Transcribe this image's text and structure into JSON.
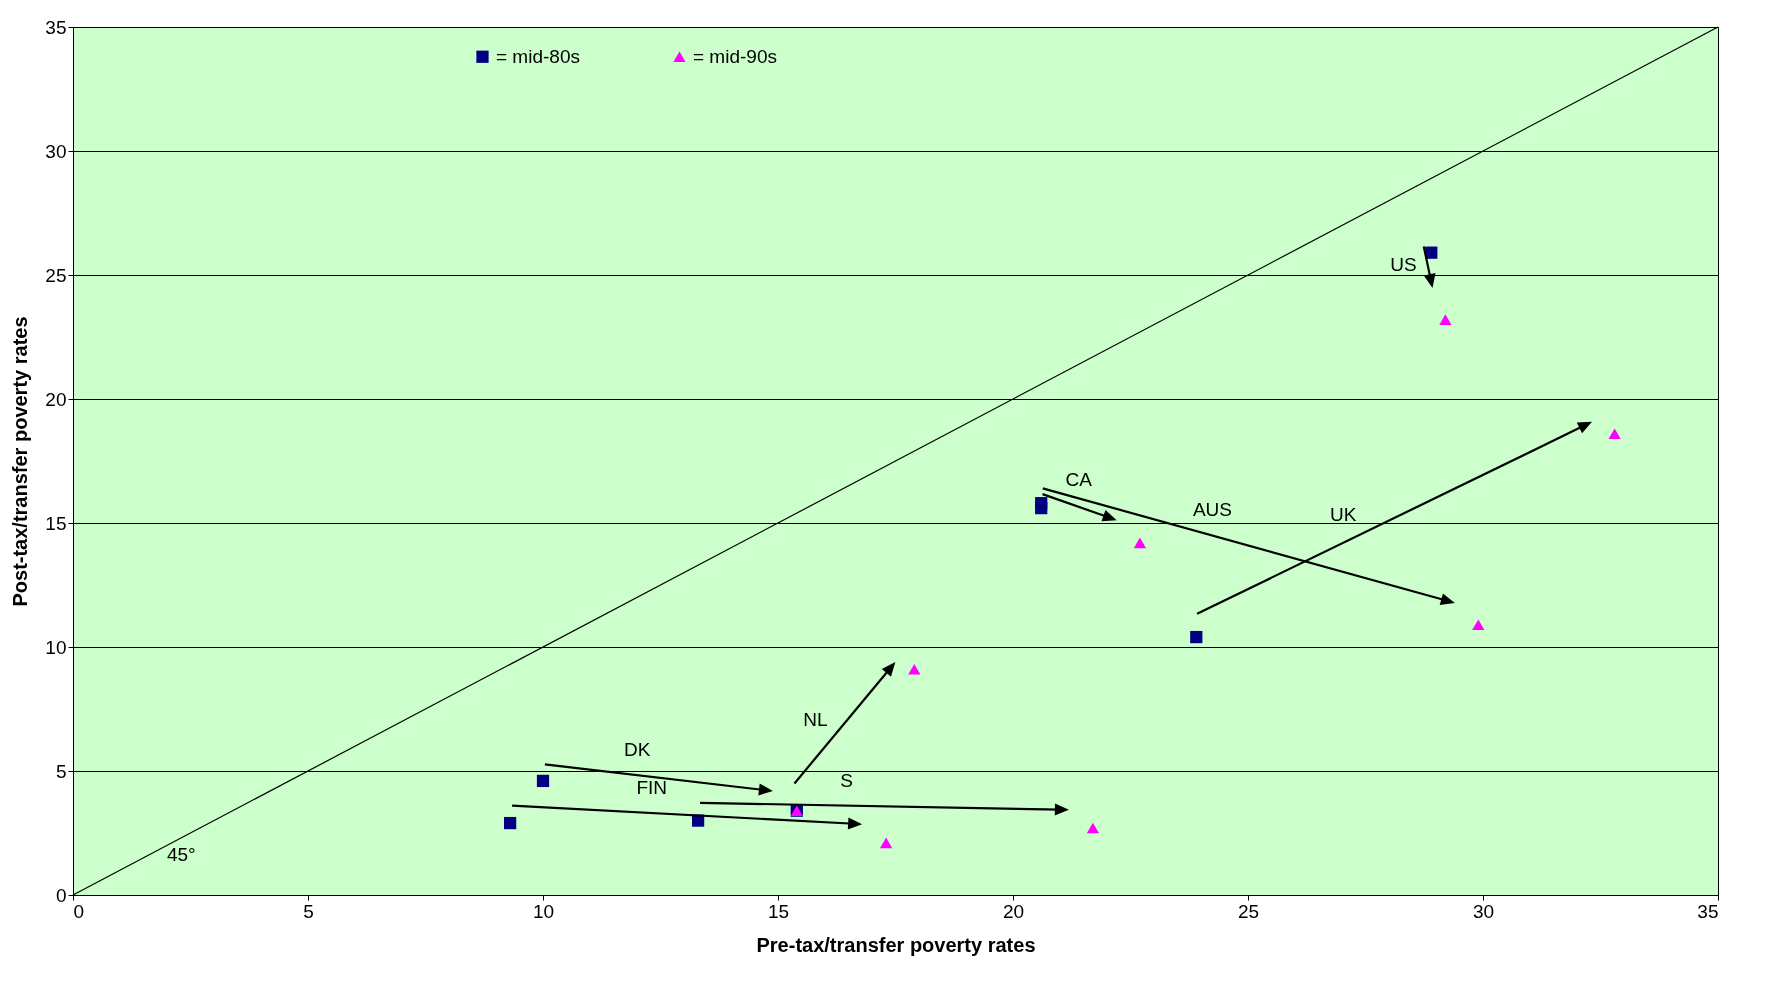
{
  "chart_data": {
    "type": "scatter",
    "xlabel": "Pre-tax/transfer poverty rates",
    "ylabel": "Post-tax/transfer poverty rates",
    "xlim": [
      0,
      35
    ],
    "ylim": [
      0,
      35
    ],
    "xticks": [
      0,
      5,
      10,
      15,
      20,
      25,
      30,
      35
    ],
    "yticks": [
      0,
      5,
      10,
      15,
      20,
      25,
      30,
      35
    ],
    "grid": "y",
    "legend": "top left",
    "series": [
      {
        "name": "= mid-80s",
        "color": "#000080",
        "marker": "square",
        "x": [
          28.9,
          20.6,
          20.6,
          23.9,
          15.4,
          10.0,
          13.3,
          9.3
        ],
        "values": [
          25.9,
          15.6,
          15.8,
          10.4,
          3.4,
          4.6,
          3.0,
          2.9
        ]
      },
      {
        "name": "= mid-90s",
        "color": "#ff00ff",
        "marker": "triangle",
        "x": [
          29.2,
          22.7,
          29.9,
          32.8,
          17.9,
          15.4,
          21.7,
          17.3
        ],
        "values": [
          23.2,
          14.2,
          10.9,
          18.6,
          9.1,
          3.4,
          2.7,
          2.1
        ]
      },
      {
        "type": "line",
        "color": "#000000",
        "x": [
          0,
          35
        ],
        "values": [
          0,
          35
        ]
      }
    ],
    "annotations": [
      "US",
      "CA",
      "AUS",
      "UK",
      "NL",
      "DK",
      "S",
      "FIN",
      "45°"
    ]
  }
}
